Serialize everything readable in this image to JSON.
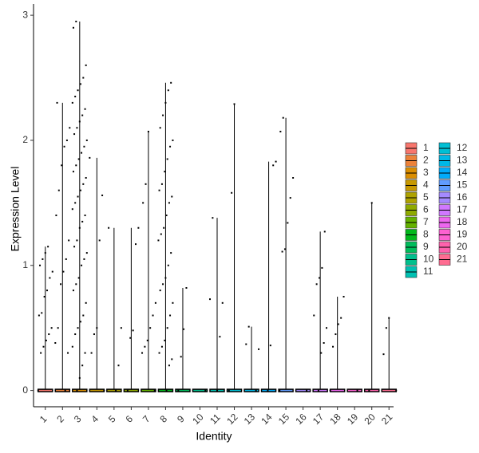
{
  "chart_data": {
    "type": "violin",
    "x_label": "Identity",
    "y_label": "Expression Level",
    "categories": [
      "1",
      "2",
      "3",
      "4",
      "5",
      "6",
      "7",
      "8",
      "9",
      "10",
      "11",
      "12",
      "13",
      "14",
      "15",
      "16",
      "17",
      "18",
      "19",
      "20",
      "21"
    ],
    "ylim": [
      -0.13,
      3.09
    ],
    "yticks": [
      0,
      1,
      2,
      3
    ],
    "series": [
      {
        "name": "1",
        "color": "#F8766D",
        "values": [
          0,
          0.3,
          0.35,
          0.4,
          0.45,
          0.5,
          0.6,
          0.62,
          0.75,
          0.8,
          0.9,
          0.95,
          1.0,
          1.05,
          1.1,
          1.15
        ]
      },
      {
        "name": "2",
        "color": "#EC8239",
        "values": [
          0,
          0.3,
          0.38,
          0.5,
          0.85,
          0.95,
          1.05,
          1.2,
          1.4,
          1.6,
          1.8,
          1.95,
          2.0,
          2.1,
          2.3
        ]
      },
      {
        "name": "3",
        "color": "#DB8E00",
        "values": [
          0,
          0.1,
          0.2,
          0.3,
          0.35,
          0.45,
          0.5,
          0.55,
          0.6,
          0.7,
          0.8,
          0.85,
          0.9,
          1.0,
          1.05,
          1.1,
          1.15,
          1.2,
          1.3,
          1.35,
          1.4,
          1.45,
          1.5,
          1.55,
          1.6,
          1.65,
          1.7,
          1.75,
          1.8,
          1.85,
          1.9,
          1.95,
          2.0,
          2.05,
          2.1,
          2.15,
          2.2,
          2.25,
          2.3,
          2.35,
          2.4,
          2.45,
          2.5,
          2.6,
          2.9,
          2.95
        ]
      },
      {
        "name": "4",
        "color": "#C79800",
        "values": [
          0,
          0.3,
          0.45,
          0.5,
          1.2,
          1.56,
          1.86
        ]
      },
      {
        "name": "5",
        "color": "#AEA200",
        "values": [
          0,
          0.2,
          0.5,
          1.3
        ]
      },
      {
        "name": "6",
        "color": "#8FAA00",
        "values": [
          0,
          0.42,
          0.48,
          1.17,
          1.3
        ]
      },
      {
        "name": "7",
        "color": "#64B200",
        "values": [
          0,
          0.3,
          0.35,
          0.4,
          0.5,
          0.6,
          0.7,
          1.5,
          1.65,
          2.07
        ]
      },
      {
        "name": "8",
        "color": "#00B81B",
        "values": [
          0,
          0.2,
          0.25,
          0.3,
          0.35,
          0.4,
          0.5,
          0.6,
          0.7,
          0.8,
          0.85,
          0.9,
          1.0,
          1.1,
          1.2,
          1.25,
          1.3,
          1.4,
          1.5,
          1.55,
          1.6,
          1.65,
          1.75,
          1.85,
          1.95,
          2.0,
          2.1,
          2.2,
          2.3,
          2.4,
          2.46
        ]
      },
      {
        "name": "9",
        "color": "#00BD5C",
        "values": [
          0,
          0.27,
          0.49,
          0.82
        ]
      },
      {
        "name": "10",
        "color": "#00C08D",
        "values": [
          0
        ]
      },
      {
        "name": "11",
        "color": "#00C1B2",
        "values": [
          0,
          0.43,
          0.7,
          0.73,
          1.38
        ]
      },
      {
        "name": "12",
        "color": "#00BFD4",
        "values": [
          0,
          1.58,
          2.29
        ]
      },
      {
        "name": "13",
        "color": "#00B8E7",
        "values": [
          0,
          0.33,
          0.37,
          0.51
        ]
      },
      {
        "name": "14",
        "color": "#00ACFC",
        "values": [
          0,
          0.36,
          1.8,
          1.83
        ]
      },
      {
        "name": "15",
        "color": "#619CFF",
        "values": [
          0,
          1.11,
          1.13,
          1.34,
          1.54,
          1.7,
          2.07,
          2.18
        ]
      },
      {
        "name": "16",
        "color": "#A58AFF",
        "values": [
          0
        ]
      },
      {
        "name": "17",
        "color": "#D078FF",
        "values": [
          0,
          0.3,
          0.38,
          0.5,
          0.6,
          0.85,
          0.9,
          0.98,
          1.27
        ]
      },
      {
        "name": "18",
        "color": "#EE67EF",
        "values": [
          0,
          0.35,
          0.45,
          0.53,
          0.58,
          0.75
        ]
      },
      {
        "name": "19",
        "color": "#FD61D1",
        "values": [
          0
        ]
      },
      {
        "name": "20",
        "color": "#FF62AD",
        "values": [
          0,
          1.5
        ]
      },
      {
        "name": "21",
        "color": "#FF6C91",
        "values": [
          0,
          0.29,
          0.5,
          0.58
        ]
      }
    ]
  }
}
